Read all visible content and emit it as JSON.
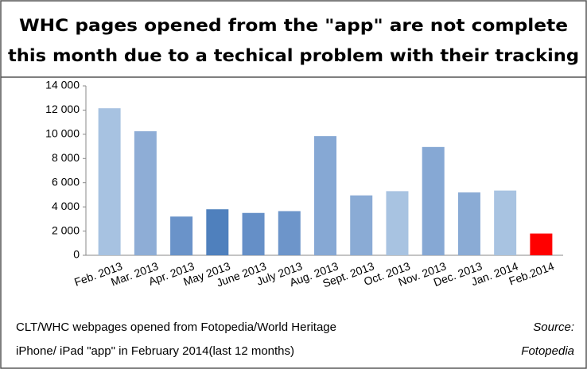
{
  "chart_data": {
    "type": "bar",
    "title": [
      "WHC pages opened from the \"app\" are not complete",
      "this month due to a techical problem with their tracking"
    ],
    "categories": [
      "Feb. 2013",
      "Mar. 2013",
      "Apr. 2013",
      "May 2013",
      "June 2013",
      "July 2013",
      "Aug. 2013",
      "Sept. 2013",
      "Oct. 2013",
      "Nov. 2013",
      "Dec. 2013",
      "Jan. 2014",
      "Feb.2014"
    ],
    "values": [
      12150,
      10250,
      3200,
      3800,
      3500,
      3650,
      9850,
      4950,
      5300,
      8950,
      5200,
      5350,
      1800
    ],
    "colors": [
      "#a7c2e1",
      "#8eadd6",
      "#6a93c9",
      "#4f80bd",
      "#658fc7",
      "#6d95ca",
      "#86a8d4",
      "#8aabd5",
      "#a8c3e1",
      "#86a8d4",
      "#8aabd5",
      "#a8c3e1",
      "#ff0000"
    ],
    "ylim": [
      0,
      14000
    ],
    "yticks": [
      0,
      {
        "value": 2000,
        "label": "2 000"
      },
      {
        "value": 4000,
        "label": "4 000"
      },
      {
        "value": 6000,
        "label": "6 000"
      },
      {
        "value": 8000,
        "label": "8 000"
      },
      {
        "value": 10000,
        "label": "10 000"
      },
      {
        "value": 12000,
        "label": "12 000"
      },
      {
        "value": 14000,
        "label": "14 000"
      }
    ],
    "grid": false,
    "caption": [
      "CLT/WHC webpages opened from Fotopedia/World Heritage",
      "iPhone/ iPad \"app\" in February 2014(last 12 months)"
    ],
    "source": [
      "Source:",
      "Fotopedia"
    ]
  }
}
